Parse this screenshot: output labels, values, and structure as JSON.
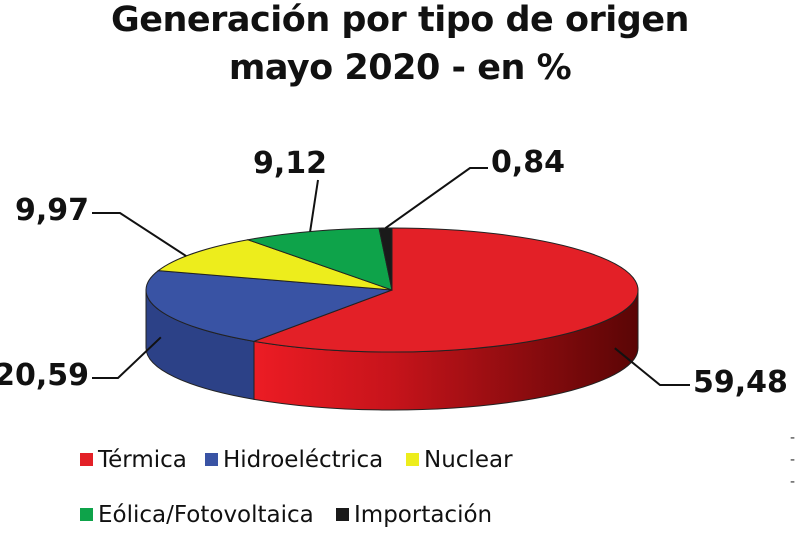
{
  "title_line1": "Generación por tipo de origen",
  "title_line2": "mayo 2020 - en %",
  "chart_data": {
    "type": "pie",
    "title": "Generación por tipo de origen mayo 2020 - en %",
    "three_d": true,
    "legend_position": "bottom",
    "labels": [
      "Térmica",
      "Hidroeléctrica",
      "Nuclear",
      "Eólica/Fotovoltaica",
      "Importación"
    ],
    "values": [
      59.48,
      20.59,
      9.97,
      9.12,
      0.84
    ],
    "value_labels": [
      "59,48",
      "20,59",
      "9,97",
      "9,12",
      "0,84"
    ],
    "colors": [
      "#e32027",
      "#3953a4",
      "#eded1c",
      "#0ea34a",
      "#1a1a1a"
    ]
  },
  "side_marks": [
    "-",
    "-",
    "-"
  ]
}
